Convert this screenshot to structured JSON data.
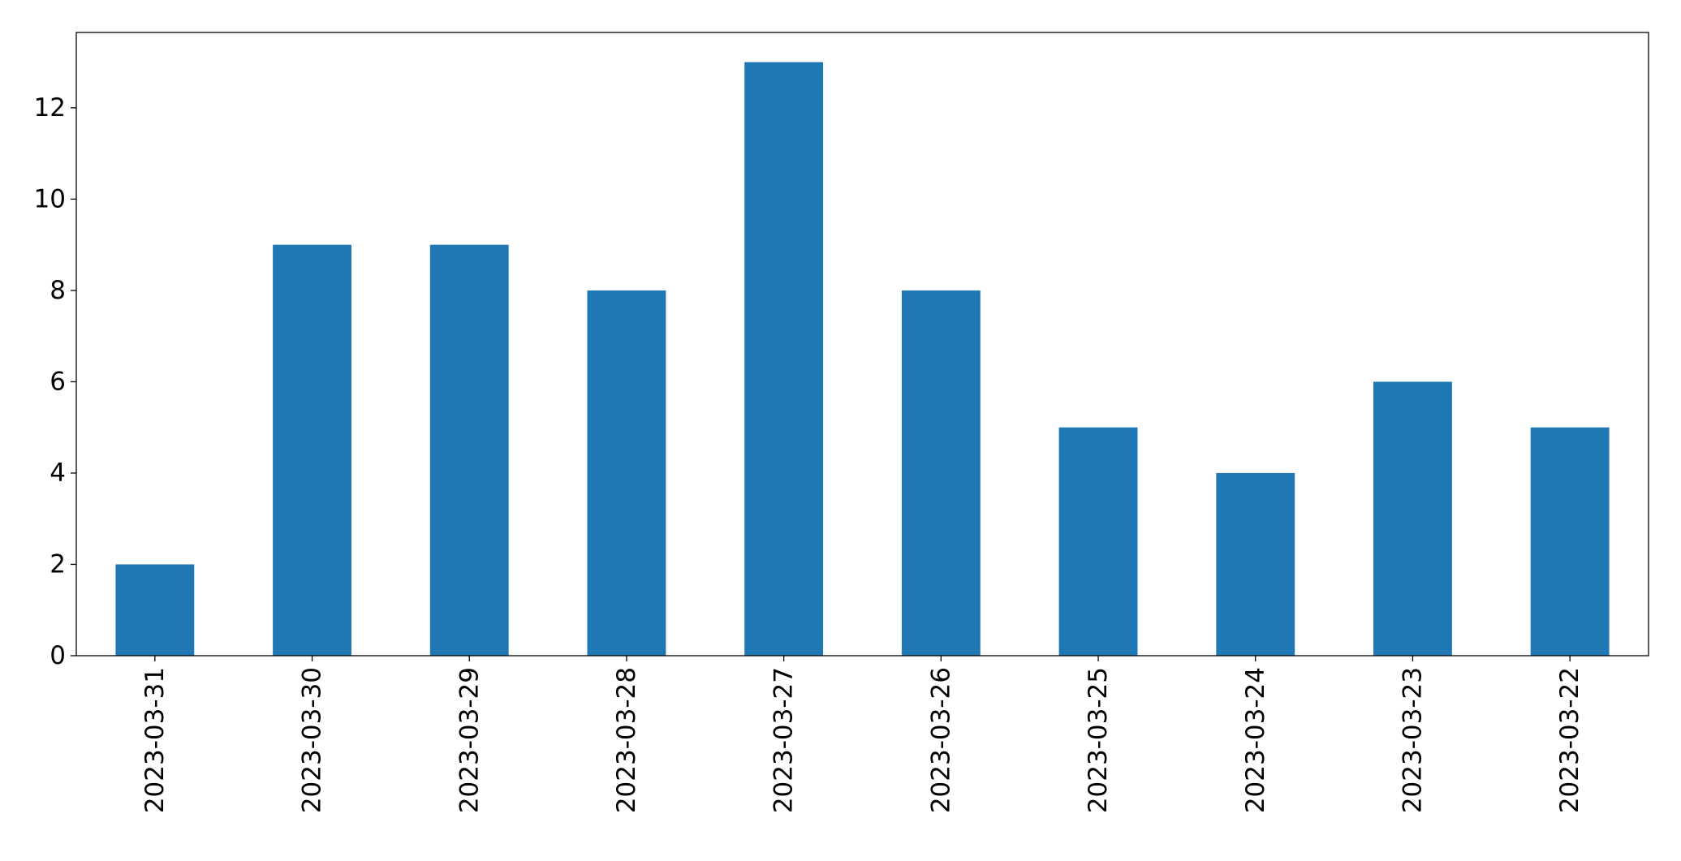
{
  "chart_data": {
    "type": "bar",
    "categories": [
      "2023-03-31",
      "2023-03-30",
      "2023-03-29",
      "2023-03-28",
      "2023-03-27",
      "2023-03-26",
      "2023-03-25",
      "2023-03-24",
      "2023-03-23",
      "2023-03-22"
    ],
    "values": [
      2,
      9,
      9,
      8,
      13,
      8,
      5,
      4,
      6,
      5
    ],
    "color": "#1f77b4",
    "ylim": [
      0,
      13.65
    ],
    "yticks": [
      0,
      2,
      4,
      6,
      8,
      10,
      12
    ],
    "grid": false
  }
}
